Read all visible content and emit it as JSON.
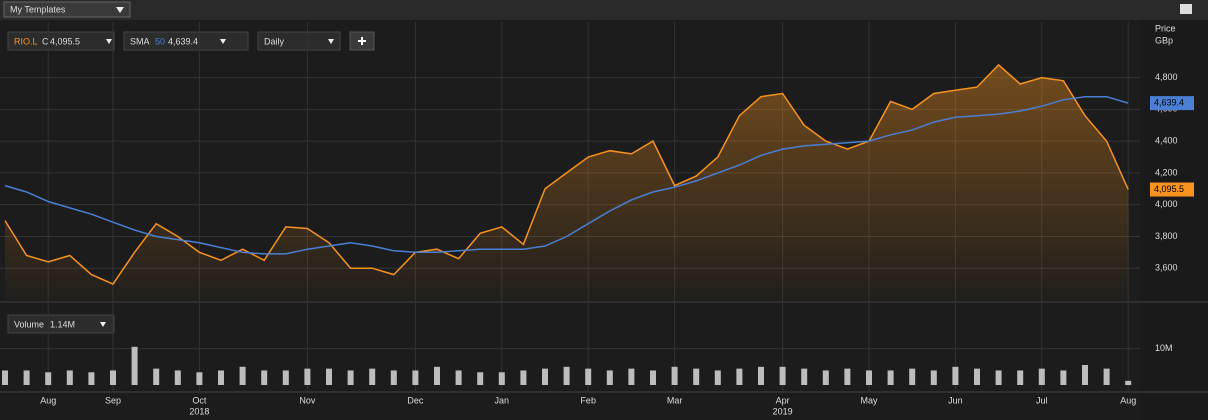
{
  "toolbar": {
    "templates": "My Templates"
  },
  "chart_data": {
    "type": "line",
    "legend": {
      "symbol": "RIO.L",
      "close_prefix": "C",
      "close": "4,095.5",
      "sma_name": "SMA",
      "sma_period": "50",
      "sma_value": "4,639.4",
      "interval": "Daily"
    },
    "y_axis_title": "Price",
    "y_axis_unit": "GBp",
    "categories": [
      null,
      null,
      "Aug",
      null,
      null,
      "Sep",
      null,
      null,
      null,
      "Oct",
      null,
      null,
      null,
      null,
      "Nov",
      null,
      null,
      null,
      null,
      "Dec",
      null,
      null,
      null,
      "Jan",
      null,
      null,
      null,
      "Feb",
      null,
      null,
      null,
      "Mar",
      null,
      null,
      null,
      null,
      "Apr",
      null,
      null,
      null,
      "May",
      null,
      null,
      null,
      "Jun",
      null,
      null,
      null,
      "Jul",
      null,
      null,
      null,
      "Aug"
    ],
    "year_labels": [
      "2018",
      "2019"
    ],
    "series": [
      {
        "name": "RIO.L",
        "color": "#f7931e",
        "values": [
          3900,
          3680,
          3640,
          3680,
          3560,
          3500,
          3700,
          3880,
          3800,
          3700,
          3650,
          3720,
          3650,
          3860,
          3850,
          3760,
          3600,
          3600,
          3560,
          3700,
          3720,
          3660,
          3820,
          3860,
          3750,
          4100,
          4200,
          4300,
          4340,
          4320,
          4400,
          4120,
          4180,
          4300,
          4560,
          4680,
          4700,
          4500,
          4400,
          4350,
          4400,
          4650,
          4600,
          4700,
          4720,
          4740,
          4880,
          4760,
          4800,
          4780,
          4560,
          4400,
          4095.5
        ]
      },
      {
        "name": "SMA",
        "color": "#4a7fd4",
        "values": [
          4120,
          4080,
          4020,
          3980,
          3940,
          3890,
          3840,
          3800,
          3780,
          3760,
          3730,
          3700,
          3690,
          3690,
          3720,
          3740,
          3760,
          3740,
          3710,
          3700,
          3700,
          3710,
          3720,
          3720,
          3720,
          3740,
          3800,
          3880,
          3960,
          4030,
          4080,
          4110,
          4150,
          4200,
          4250,
          4310,
          4350,
          4370,
          4380,
          4390,
          4400,
          4440,
          4470,
          4520,
          4550,
          4560,
          4570,
          4590,
          4620,
          4660,
          4680,
          4680,
          4639.4
        ]
      }
    ],
    "ylim": [
      3400,
      5150
    ],
    "yticks": [
      {
        "value": 3600,
        "label": "3,600"
      },
      {
        "value": 3800,
        "label": "3,800"
      },
      {
        "value": 4000,
        "label": "4,000"
      },
      {
        "value": 4200,
        "label": "4,200"
      },
      {
        "value": 4400,
        "label": "4,400"
      },
      {
        "value": 4600,
        "label": "4,600"
      },
      {
        "value": 4800,
        "label": "4,800"
      }
    ],
    "grid": true,
    "volume": {
      "name": "Volume",
      "value_label": "1.14M",
      "color": "#bdbdbd",
      "values": [
        4,
        4,
        3.5,
        4,
        3.5,
        4,
        10.5,
        4.5,
        4,
        3.5,
        4,
        5,
        4,
        4,
        4.5,
        4.5,
        4,
        4.5,
        4,
        4,
        5,
        4,
        3.5,
        3.5,
        4,
        4.5,
        5,
        4.5,
        4,
        4.5,
        4,
        5,
        4.5,
        4,
        4.5,
        5,
        5,
        4.5,
        4,
        4.5,
        4,
        4,
        4.5,
        4,
        5,
        4.5,
        4,
        4,
        4.5,
        4,
        5.5,
        4.5,
        1.14
      ],
      "ylim": [
        0,
        22
      ],
      "yticks": [
        {
          "value": 10,
          "label": "10M"
        }
      ]
    }
  }
}
